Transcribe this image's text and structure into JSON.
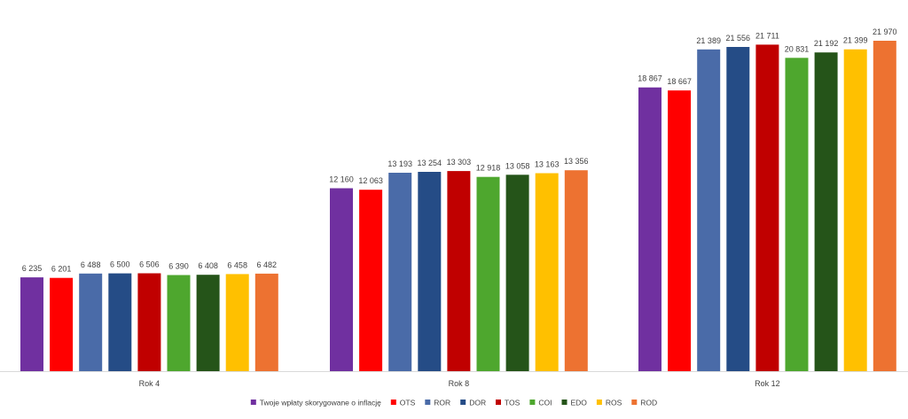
{
  "chart_data": {
    "type": "bar",
    "title": "",
    "xlabel": "",
    "ylabel": "",
    "ylim": [
      0,
      23500
    ],
    "grid": false,
    "legend_position": "bottom",
    "categories": [
      "Rok 4",
      "Rok 8",
      "Rok 12"
    ],
    "series": [
      {
        "name": "Twoje wpłaty skorygowane o inflację",
        "color": "#7030A0",
        "values": [
          6235,
          12160,
          18867
        ],
        "labels": [
          "6 235",
          "12 160",
          "18 867"
        ]
      },
      {
        "name": "OTS",
        "color": "#FF0000",
        "values": [
          6201,
          12063,
          18667
        ],
        "labels": [
          "6 201",
          "12 063",
          "18 667"
        ]
      },
      {
        "name": "ROR",
        "color": "#4A6BA8",
        "values": [
          6488,
          13193,
          21389
        ],
        "labels": [
          "6 488",
          "13 193",
          "21 389"
        ]
      },
      {
        "name": "DOR",
        "color": "#254C86",
        "values": [
          6500,
          13254,
          21556
        ],
        "labels": [
          "6 500",
          "13 254",
          "21 556"
        ]
      },
      {
        "name": "TOS",
        "color": "#C00000",
        "values": [
          6506,
          13303,
          21711
        ],
        "labels": [
          "6 506",
          "13 303",
          "21 711"
        ]
      },
      {
        "name": "COI",
        "color": "#4EA72E",
        "values": [
          6390,
          12918,
          20831
        ],
        "labels": [
          "6 390",
          "12 918",
          "20 831"
        ]
      },
      {
        "name": "EDO",
        "color": "#255419",
        "values": [
          6408,
          13058,
          21192
        ],
        "labels": [
          "6 408",
          "13 058",
          "21 192"
        ]
      },
      {
        "name": "ROS",
        "color": "#FFC000",
        "values": [
          6458,
          13163,
          21399
        ],
        "labels": [
          "6 458",
          "13 163",
          "21 399"
        ]
      },
      {
        "name": "ROD",
        "color": "#ED7231",
        "values": [
          6482,
          13356,
          21970
        ],
        "labels": [
          "6 482",
          "13 356",
          "21 970"
        ]
      }
    ]
  }
}
